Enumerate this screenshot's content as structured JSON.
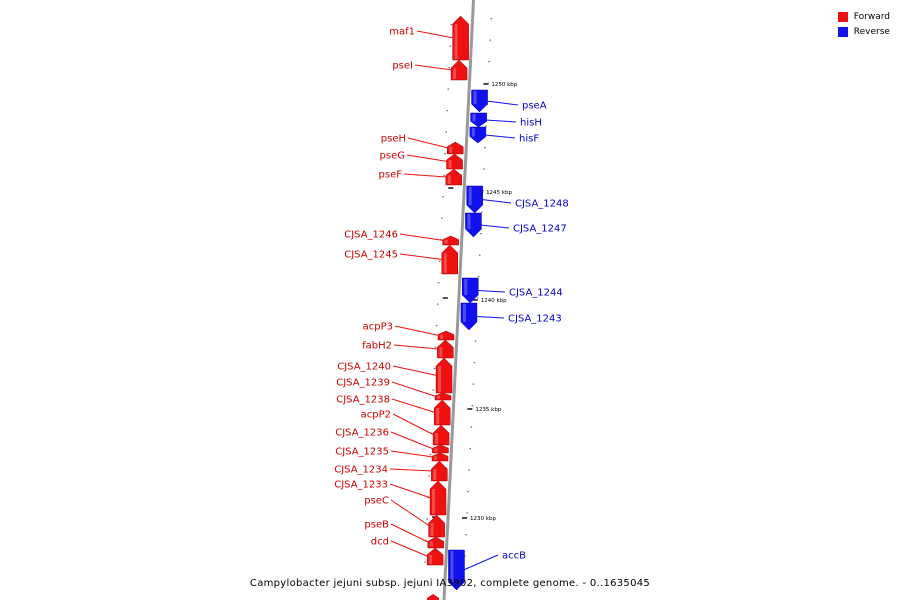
{
  "legend": {
    "forward_label": "Forward",
    "reverse_label": "Reverse",
    "forward_color": "#ee1111",
    "reverse_color": "#1111ee"
  },
  "caption": "Campylobacter jejuni subsp. jejuni IA3902, complete genome. - 0..1635045",
  "colors": {
    "backbone": "#999999",
    "label_forward": "#cc0000",
    "label_reverse": "#0000cc"
  },
  "scale_ticks": [
    {
      "kbp": 1250,
      "label": "1250 kbp"
    },
    {
      "kbp": 1245,
      "label": "1245 kbp"
    },
    {
      "kbp": 1240,
      "label": "1240 kbp"
    },
    {
      "kbp": 1235,
      "label": "1235 kbp"
    },
    {
      "kbp": 1230,
      "label": "1230 kbp"
    }
  ],
  "genes": [
    {
      "name": "maf1",
      "strand": "forward"
    },
    {
      "name": "pseI",
      "strand": "forward"
    },
    {
      "name": "pseA",
      "strand": "reverse"
    },
    {
      "name": "hisH",
      "strand": "reverse"
    },
    {
      "name": "hisF",
      "strand": "reverse"
    },
    {
      "name": "pseH",
      "strand": "forward"
    },
    {
      "name": "pseG",
      "strand": "forward"
    },
    {
      "name": "pseF",
      "strand": "forward"
    },
    {
      "name": "CJSA_1248",
      "strand": "reverse"
    },
    {
      "name": "CJSA_1247",
      "strand": "reverse"
    },
    {
      "name": "CJSA_1246",
      "strand": "forward"
    },
    {
      "name": "CJSA_1245",
      "strand": "forward"
    },
    {
      "name": "CJSA_1244",
      "strand": "reverse"
    },
    {
      "name": "CJSA_1243",
      "strand": "reverse"
    },
    {
      "name": "acpP3",
      "strand": "forward"
    },
    {
      "name": "fabH2",
      "strand": "forward"
    },
    {
      "name": "CJSA_1240",
      "strand": "forward"
    },
    {
      "name": "CJSA_1239",
      "strand": "forward"
    },
    {
      "name": "CJSA_1238",
      "strand": "forward"
    },
    {
      "name": "acpP2",
      "strand": "forward"
    },
    {
      "name": "CJSA_1236",
      "strand": "forward"
    },
    {
      "name": "CJSA_1235",
      "strand": "forward"
    },
    {
      "name": "CJSA_1234",
      "strand": "forward"
    },
    {
      "name": "CJSA_1233",
      "strand": "forward"
    },
    {
      "name": "pseC",
      "strand": "forward"
    },
    {
      "name": "pseB",
      "strand": "forward"
    },
    {
      "name": "dcd",
      "strand": "forward"
    },
    {
      "name": "accB",
      "strand": "reverse"
    }
  ]
}
